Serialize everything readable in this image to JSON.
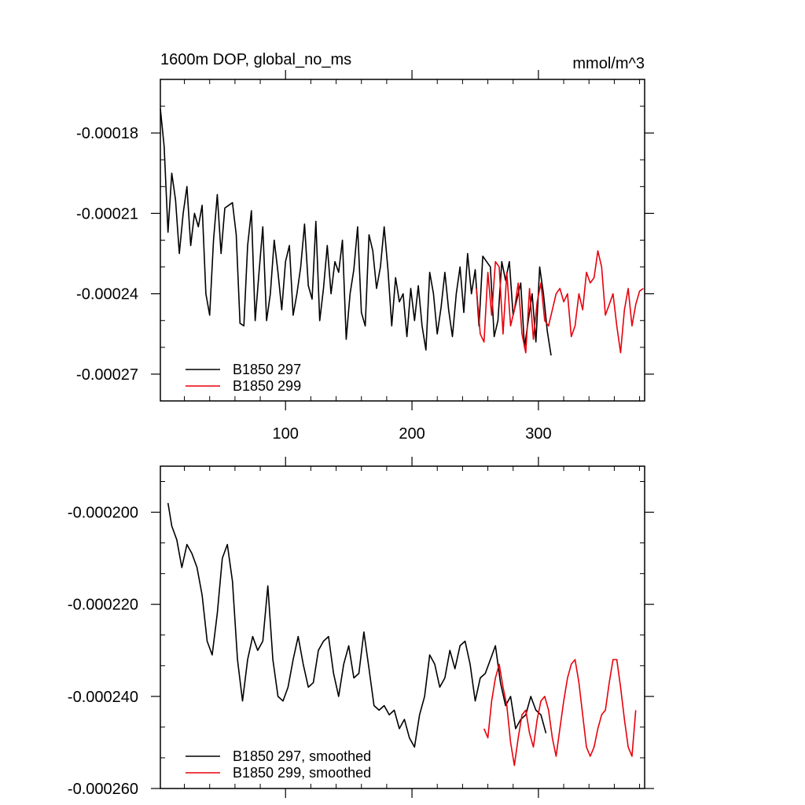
{
  "chart_data": [
    {
      "type": "line",
      "title": "1600m DOP, global_no_ms",
      "units": "mmol/m^3",
      "xlim": [
        1,
        384
      ],
      "ylim": [
        -0.00028,
        -0.00016
      ],
      "xticks": [
        100,
        200,
        300
      ],
      "xticklabels": [
        "100",
        "200",
        "300"
      ],
      "yticks": [
        -0.00018,
        -0.00021,
        -0.00024,
        -0.00027
      ],
      "yticklabels": [
        "-0.00018",
        "-0.00021",
        "-0.00024",
        "-0.00027"
      ],
      "grid": false,
      "legend_position": "bottom-left",
      "series": [
        {
          "name": "B1850 297",
          "color": "#000000",
          "x": [
            1,
            4,
            7,
            10,
            13,
            16,
            19,
            22,
            25,
            28,
            31,
            34,
            37,
            40,
            43,
            46,
            49,
            52,
            55,
            58,
            61,
            64,
            67,
            70,
            73,
            76,
            79,
            82,
            85,
            88,
            91,
            94,
            97,
            100,
            103,
            106,
            109,
            112,
            115,
            118,
            121,
            124,
            127,
            130,
            133,
            136,
            139,
            142,
            145,
            148,
            151,
            154,
            157,
            160,
            163,
            166,
            169,
            172,
            175,
            178,
            181,
            184,
            187,
            190,
            193,
            196,
            199,
            202,
            205,
            208,
            211,
            214,
            217,
            220,
            223,
            226,
            229,
            232,
            235,
            238,
            241,
            244,
            247,
            250,
            253,
            256,
            259,
            262,
            265,
            268,
            271,
            274,
            277,
            280,
            283,
            286,
            289,
            292,
            295,
            298,
            301,
            304,
            307,
            310
          ],
          "y": [
            -0.000171,
            -0.000185,
            -0.000217,
            -0.000195,
            -0.000205,
            -0.000225,
            -0.00021,
            -0.0002,
            -0.000222,
            -0.00021,
            -0.000215,
            -0.000207,
            -0.00024,
            -0.000248,
            -0.00022,
            -0.000203,
            -0.000225,
            -0.000208,
            -0.000207,
            -0.000206,
            -0.000218,
            -0.000251,
            -0.000252,
            -0.000222,
            -0.000209,
            -0.00025,
            -0.000232,
            -0.000215,
            -0.00025,
            -0.00024,
            -0.00022,
            -0.000232,
            -0.000246,
            -0.000228,
            -0.000222,
            -0.000248,
            -0.00024,
            -0.00023,
            -0.000214,
            -0.000237,
            -0.000242,
            -0.000213,
            -0.00025,
            -0.000238,
            -0.000222,
            -0.00024,
            -0.000228,
            -0.000232,
            -0.00022,
            -0.000257,
            -0.00024,
            -0.000231,
            -0.000215,
            -0.000247,
            -0.000252,
            -0.000218,
            -0.000224,
            -0.000238,
            -0.00023,
            -0.000215,
            -0.000231,
            -0.000252,
            -0.000234,
            -0.000243,
            -0.00024,
            -0.000256,
            -0.000238,
            -0.00025,
            -0.000237,
            -0.000252,
            -0.000261,
            -0.000232,
            -0.00024,
            -0.000255,
            -0.000245,
            -0.000232,
            -0.000246,
            -0.000256,
            -0.00024,
            -0.00023,
            -0.000247,
            -0.000225,
            -0.00024,
            -0.000231,
            -0.000252,
            -0.000226,
            -0.000228,
            -0.00023,
            -0.000256,
            -0.00025,
            -0.000228,
            -0.000235,
            -0.000228,
            -0.000248,
            -0.000242,
            -0.000236,
            -0.00026,
            -0.00025,
            -0.00024,
            -0.000258,
            -0.00023,
            -0.00024,
            -0.000254,
            -0.000263
          ]
        },
        {
          "name": "B1850 299",
          "color": "#e8000b",
          "x": [
            251,
            254,
            257,
            260,
            263,
            266,
            269,
            272,
            275,
            278,
            281,
            284,
            287,
            290,
            293,
            296,
            299,
            302,
            305,
            308,
            311,
            314,
            317,
            320,
            323,
            326,
            329,
            332,
            335,
            338,
            341,
            344,
            347,
            350,
            353,
            356,
            359,
            362,
            365,
            368,
            371,
            374,
            377,
            380,
            383
          ],
          "y": [
            -0.000238,
            -0.000255,
            -0.000258,
            -0.000232,
            -0.000248,
            -0.000228,
            -0.00023,
            -0.000255,
            -0.000232,
            -0.000252,
            -0.000246,
            -0.000236,
            -0.000255,
            -0.000262,
            -0.000238,
            -0.000257,
            -0.000243,
            -0.000236,
            -0.00025,
            -0.000252,
            -0.000246,
            -0.00024,
            -0.000238,
            -0.000243,
            -0.00024,
            -0.000256,
            -0.000252,
            -0.00024,
            -0.000246,
            -0.000232,
            -0.000236,
            -0.000234,
            -0.000224,
            -0.00023,
            -0.000248,
            -0.000244,
            -0.00024,
            -0.000252,
            -0.000262,
            -0.000246,
            -0.000238,
            -0.000252,
            -0.000244,
            -0.000239,
            -0.000238
          ]
        }
      ]
    },
    {
      "type": "line",
      "xlim": [
        1,
        384
      ],
      "ylim": [
        -0.00026,
        -0.00019
      ],
      "xticks": [
        100,
        200,
        300
      ],
      "yticks": [
        -0.0002,
        -0.00022,
        -0.00024,
        -0.00026
      ],
      "yticklabels": [
        "-0.000200",
        "-0.000220",
        "-0.000240",
        "-0.000260"
      ],
      "grid": false,
      "legend_position": "bottom-left",
      "series": [
        {
          "name": "B1850 297, smoothed",
          "color": "#000000",
          "x": [
            7,
            10,
            14,
            18,
            22,
            26,
            30,
            34,
            38,
            42,
            46,
            50,
            54,
            58,
            62,
            66,
            70,
            74,
            78,
            82,
            86,
            90,
            94,
            98,
            102,
            106,
            110,
            114,
            118,
            122,
            126,
            130,
            134,
            138,
            142,
            146,
            150,
            154,
            158,
            162,
            166,
            170,
            174,
            178,
            182,
            186,
            190,
            194,
            198,
            202,
            206,
            210,
            214,
            218,
            222,
            226,
            230,
            234,
            238,
            242,
            246,
            250,
            254,
            258,
            262,
            266,
            270,
            274,
            278,
            282,
            286,
            290,
            294,
            298,
            302,
            306
          ],
          "y": [
            -0.000198,
            -0.000203,
            -0.000206,
            -0.000212,
            -0.000207,
            -0.000209,
            -0.000212,
            -0.000218,
            -0.000228,
            -0.000231,
            -0.000222,
            -0.00021,
            -0.000207,
            -0.000215,
            -0.000232,
            -0.000241,
            -0.000232,
            -0.000227,
            -0.00023,
            -0.000228,
            -0.000216,
            -0.000232,
            -0.00024,
            -0.000241,
            -0.000238,
            -0.000232,
            -0.000227,
            -0.000233,
            -0.000238,
            -0.000237,
            -0.00023,
            -0.000228,
            -0.000227,
            -0.000235,
            -0.00024,
            -0.000233,
            -0.000229,
            -0.000236,
            -0.000235,
            -0.000226,
            -0.000234,
            -0.000242,
            -0.000243,
            -0.000242,
            -0.000244,
            -0.000243,
            -0.000247,
            -0.000245,
            -0.000249,
            -0.000251,
            -0.000244,
            -0.00024,
            -0.000231,
            -0.000233,
            -0.000238,
            -0.000236,
            -0.00023,
            -0.000234,
            -0.000229,
            -0.000228,
            -0.000233,
            -0.000241,
            -0.000236,
            -0.000235,
            -0.000232,
            -0.000229,
            -0.000237,
            -0.000242,
            -0.00024,
            -0.000247,
            -0.000245,
            -0.000244,
            -0.00024,
            -0.000243,
            -0.000244,
            -0.000248
          ]
        },
        {
          "name": "B1850 299, smoothed",
          "color": "#e8000b",
          "x": [
            257,
            260,
            263,
            266,
            269,
            272,
            275,
            278,
            281,
            284,
            287,
            290,
            293,
            296,
            299,
            302,
            305,
            308,
            311,
            314,
            317,
            320,
            323,
            326,
            329,
            332,
            335,
            338,
            341,
            344,
            347,
            350,
            353,
            356,
            359,
            362,
            365,
            368,
            371,
            374,
            377
          ],
          "y": [
            -0.000247,
            -0.000249,
            -0.000241,
            -0.000236,
            -0.000233,
            -0.000238,
            -0.000242,
            -0.00025,
            -0.000255,
            -0.000249,
            -0.000244,
            -0.000243,
            -0.000248,
            -0.000251,
            -0.000245,
            -0.000241,
            -0.00024,
            -0.000243,
            -0.000249,
            -0.000253,
            -0.000247,
            -0.000241,
            -0.000236,
            -0.000233,
            -0.000232,
            -0.000237,
            -0.000244,
            -0.000251,
            -0.000253,
            -0.000251,
            -0.000247,
            -0.000244,
            -0.000243,
            -0.000237,
            -0.000232,
            -0.000232,
            -0.000238,
            -0.000245,
            -0.000251,
            -0.000253,
            -0.000243
          ]
        }
      ]
    }
  ]
}
